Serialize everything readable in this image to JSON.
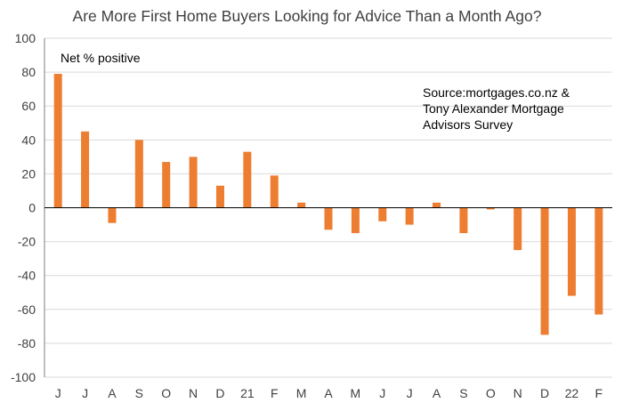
{
  "chart_data": {
    "type": "bar",
    "title": "Are More First Home Buyers Looking for Advice Than a Month Ago?",
    "annotations": [
      "Net % positive",
      "Source:mortgages.co.nz  &",
      "Tony Alexander Mortgage",
      "Advisors Survey"
    ],
    "categories": [
      "J",
      "J",
      "A",
      "S",
      "O",
      "N",
      "D",
      "21",
      "F",
      "M",
      "A",
      "M",
      "J",
      "J",
      "A",
      "S",
      "O",
      "N",
      "D",
      "22",
      "F"
    ],
    "values": [
      79,
      45,
      -9,
      40,
      27,
      30,
      13,
      33,
      19,
      3,
      -13,
      -15,
      -8,
      -10,
      3,
      -15,
      -1,
      -25,
      -75,
      -52,
      -63
    ],
    "ylim": [
      -100,
      100
    ],
    "yticks": [
      100,
      80,
      60,
      40,
      20,
      0,
      -20,
      -40,
      -60,
      -80,
      -100
    ],
    "grid": true,
    "colors": {
      "bar": "#ED7D31",
      "grid": "#D9D9D9",
      "axis": "#7F7F7F",
      "text": "#404040",
      "annotation_text": "#000000"
    }
  }
}
